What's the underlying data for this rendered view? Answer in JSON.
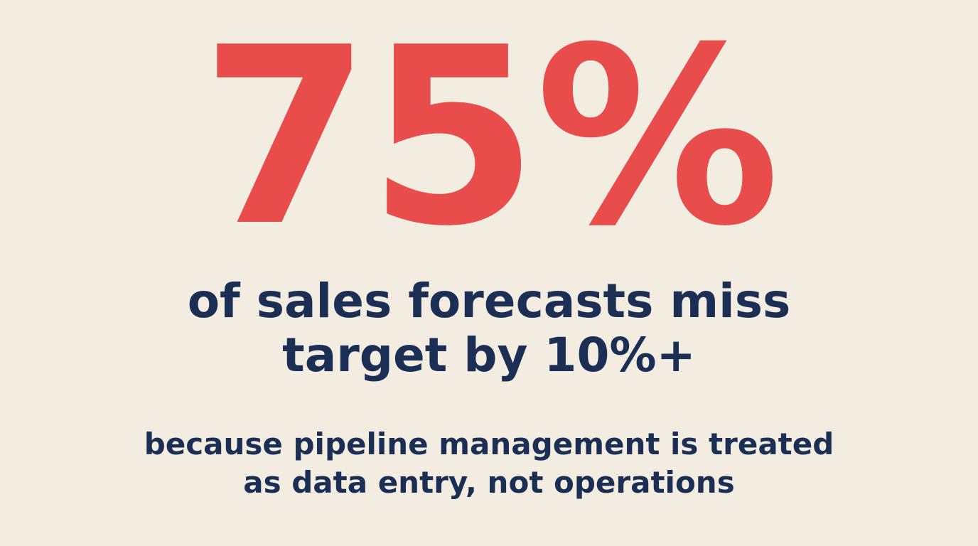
{
  "stat": {
    "value": "75%"
  },
  "headline": {
    "lines": [
      "of sales forecasts miss",
      "target by 10%+"
    ]
  },
  "subline": {
    "lines": [
      "because pipeline management is treated",
      "as data entry, not operations"
    ]
  },
  "colors": {
    "background": "#f2ede0",
    "accent": "#e84c4b",
    "text": "#1b2f55"
  }
}
